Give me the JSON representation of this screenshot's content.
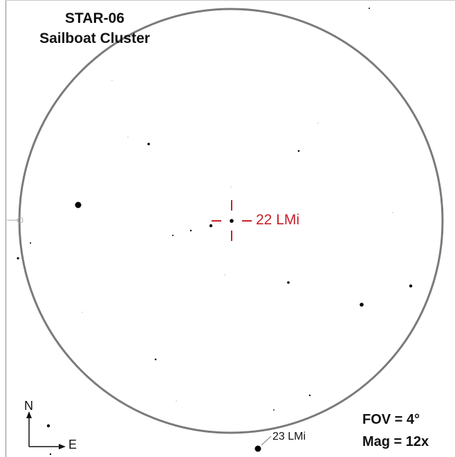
{
  "title": {
    "code": "STAR-06",
    "name": "Sailboat Cluster"
  },
  "info": {
    "fov": "FOV = 4°",
    "mag": "Mag = 12x"
  },
  "compass": {
    "north": "N",
    "east": "E"
  },
  "targets": [
    {
      "label": "22 LMi",
      "color": "#c8202a"
    },
    {
      "label": "23 LMi",
      "color": "#111111"
    }
  ],
  "colors": {
    "circle": "#7a7a7a",
    "marker": "#c8202a",
    "star": "#000000"
  }
}
